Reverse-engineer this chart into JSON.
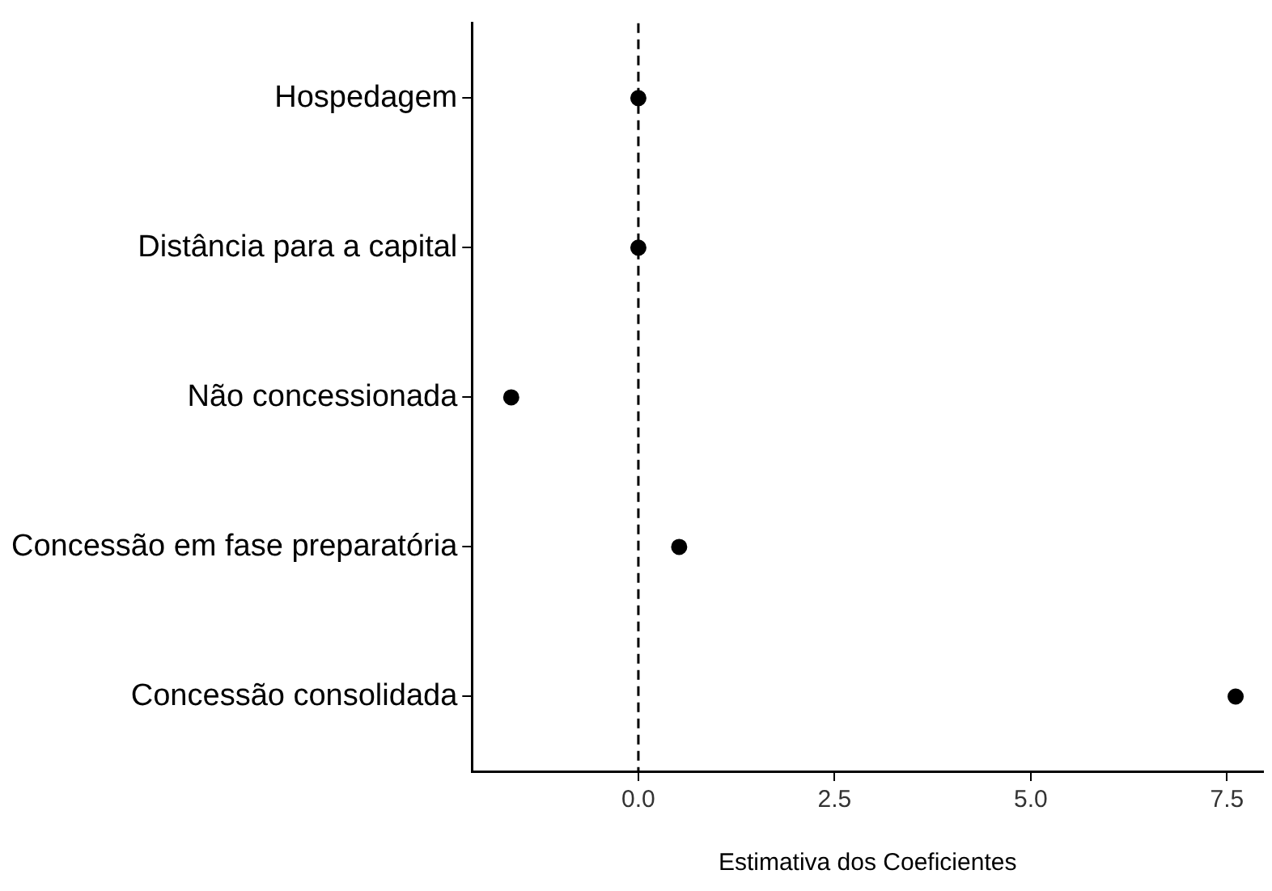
{
  "chart_data": {
    "type": "scatter",
    "orientation": "horizontal",
    "xlabel": "Estimativa dos Coeficientes",
    "categories": [
      "Hospedagem",
      "Distância para a capital",
      "Não concessionada",
      "Concessão em fase preparatória",
      "Concessão consolidada"
    ],
    "values": [
      0.0,
      0.0,
      -1.62,
      0.52,
      7.61
    ],
    "color": "#000000",
    "marker": "circle",
    "xlim": [
      -2.12,
      7.96
    ],
    "xticks": [
      {
        "value": 0,
        "label": "0.0"
      },
      {
        "value": 2.5,
        "label": "2.5"
      },
      {
        "value": 5,
        "label": "5.0"
      },
      {
        "value": 7.5,
        "label": "7.5"
      }
    ],
    "ref_lines": [
      {
        "axis": "x",
        "value": 0,
        "line_style": "dashed",
        "color": "#000000"
      }
    ],
    "grid": false,
    "legend": false
  }
}
